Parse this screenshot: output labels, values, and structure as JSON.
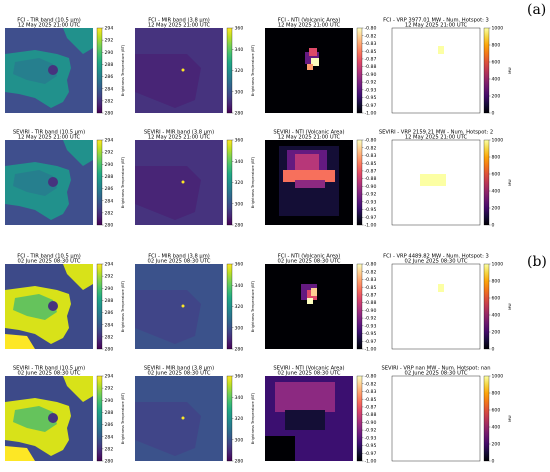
{
  "section_labels": {
    "a": "(a)",
    "b": "(b)"
  },
  "colors": {
    "viridis": [
      "#440154",
      "#482475",
      "#414487",
      "#355f8d",
      "#2a788e",
      "#21918c",
      "#22a884",
      "#44bf70",
      "#7ad151",
      "#bddf26",
      "#fde725"
    ],
    "magma": [
      "#000004",
      "#140e36",
      "#3b0f70",
      "#641a80",
      "#8c2981",
      "#b73779",
      "#de4968",
      "#f7705c",
      "#fe9f6d",
      "#fecf92",
      "#fcfdbf"
    ],
    "inferno": [
      "#000004",
      "#160b39",
      "#420a68",
      "#6a176e",
      "#932667",
      "#bc3754",
      "#dd513a",
      "#f37819",
      "#fca50a",
      "#f6d746",
      "#fcffa4"
    ]
  },
  "colorbars": {
    "tir": {
      "ticks": [
        "294",
        "292",
        "290",
        "288",
        "286",
        "284",
        "282",
        "280"
      ],
      "label": "Brightness Temperature (BT)"
    },
    "mir": {
      "ticks": [
        "360",
        "340",
        "320",
        "300",
        "280"
      ],
      "label": "Brightness Temperature (BT)"
    },
    "nti": {
      "ticks": [
        "-0.80",
        "-0.82",
        "-0.83",
        "-0.85",
        "-0.87",
        "-0.88",
        "-0.90",
        "-0.92",
        "-0.93",
        "-0.95",
        "-0.97",
        "-1.00"
      ],
      "label": ""
    },
    "frp": {
      "ticks": [
        "1000",
        "800",
        "600",
        "400",
        "200",
        "0"
      ],
      "label": "MW"
    }
  },
  "rows": [
    {
      "titles": {
        "tir": [
          "FCI - TIR band (10.5 μm)",
          "12 May 2025 21:00 UTC"
        ],
        "mir": [
          "FCI - MIR band (3.8 μm)",
          "12 May 2025 21:00 UTC"
        ],
        "nti": [
          "FCI - NTI (Volcanic Area)",
          "12 May 2025 21:00 UTC"
        ],
        "frp": [
          "FCI - VRP 3977.01 MW - Num. Hotspot: 3",
          "12 May 2025 21:00 UTC"
        ]
      }
    },
    {
      "titles": {
        "tir": [
          "SEVIRI - TIR band (10.5 μm)",
          "12 May 2025 21:00 UTC"
        ],
        "mir": [
          "SEVIRI - MIR band (3.8 μm)",
          "12 May 2025 21:00 UTC"
        ],
        "nti": [
          "SEVIRI - NTI (Volcanic Area)",
          "12 May 2025 21:00 UTC"
        ],
        "frp": [
          "SEVIRI - VRP 2159.21 MW - Num. Hotspot: 2",
          "12 May 2025 21:00 UTC"
        ]
      }
    },
    {
      "titles": {
        "tir": [
          "FCI - TIR band (10.5 μm)",
          "02 June 2025 08:30 UTC"
        ],
        "mir": [
          "FCI - MIR band (3.8 μm)",
          "02 June 2025 08:30 UTC"
        ],
        "nti": [
          "FCI - NTI (Volcanic Area)",
          "02 June 2025 08:30 UTC"
        ],
        "frp": [
          "FCI - VRP 4489.82 MW - Num. Hotspot: 3",
          "02 June 2025 08:30 UTC"
        ]
      }
    },
    {
      "titles": {
        "tir": [
          "SEVIRI - TIR band (10.5 μm)",
          "02 June 2025 08:30 UTC"
        ],
        "mir": [
          "SEVIRI - MIR band (3.8 μm)",
          "02 June 2025 08:30 UTC"
        ],
        "nti": [
          "SEVIRI - NTI (Volcanic Area)",
          "02 June 2025 08:30 UTC"
        ],
        "frp": [
          "SEVIRI - VRP nan MW - Num. Hotspot: nan",
          "02 June 2025 08:30 UTC"
        ]
      }
    }
  ]
}
